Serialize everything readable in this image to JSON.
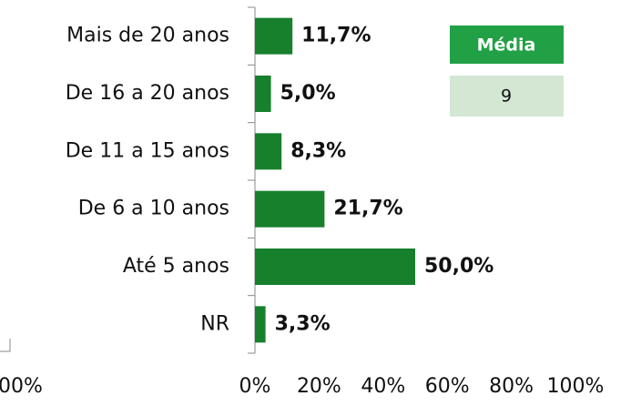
{
  "chart_data": {
    "type": "bar",
    "orientation": "horizontal",
    "categories": [
      "Mais de 20 anos",
      "De 16 a 20 anos",
      "De 11 a 15 anos",
      "De 6 a 10 anos",
      "Até 5 anos",
      "NR"
    ],
    "values": [
      11.7,
      5.0,
      8.3,
      21.7,
      50.0,
      3.3
    ],
    "value_labels": [
      "11,7%",
      "5,0%",
      "8,3%",
      "21,7%",
      "50,0%",
      "3,3%"
    ],
    "color": "#17802d",
    "xlim": [
      0,
      100
    ],
    "xticks": [
      {
        "value": 0,
        "label": "0%"
      },
      {
        "value": 20,
        "label": "20%"
      },
      {
        "value": 40,
        "label": "40%"
      },
      {
        "value": 60,
        "label": "60%"
      },
      {
        "value": 80,
        "label": "80%"
      },
      {
        "value": 100,
        "label": "100%"
      }
    ],
    "summary": {
      "header": "Média",
      "value": 9
    }
  },
  "clipped_axis_label": "00%"
}
